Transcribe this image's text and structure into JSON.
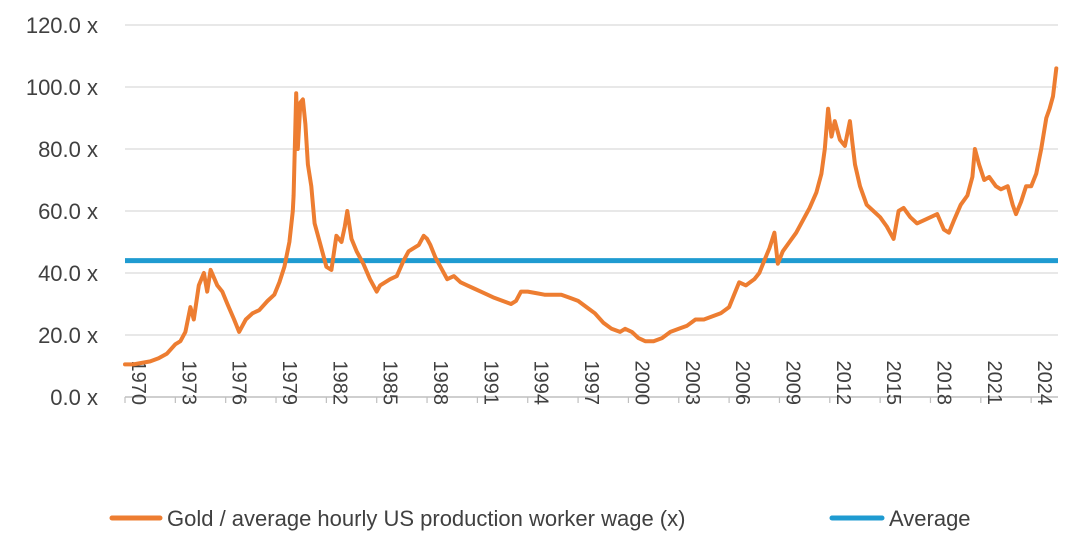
{
  "chart_data": {
    "type": "line",
    "title": "",
    "xlabel": "",
    "ylabel": "",
    "xlim": [
      1970,
      2025.6
    ],
    "ylim": [
      0,
      120
    ],
    "grid": true,
    "legend_position": "bottom",
    "y_ticks": [
      0,
      20,
      40,
      60,
      80,
      100,
      120
    ],
    "y_tick_labels": [
      "0.0 x",
      "20.0 x",
      "40.0 x",
      "60.0 x",
      "80.0 x",
      "100.0 x",
      "120.0 x"
    ],
    "x_tick_labels": [
      "1970",
      "1973",
      "1976",
      "1979",
      "1982",
      "1985",
      "1988",
      "1991",
      "1994",
      "1997",
      "2000",
      "2003",
      "2006",
      "2009",
      "2012",
      "2015",
      "2018",
      "2021",
      "2024"
    ],
    "colors": {
      "ratio": "#ED7D31",
      "average": "#1F9BD1",
      "grid": "#D9D9D9",
      "axis": "#BFBFBF"
    },
    "series": [
      {
        "name": "Gold / average hourly US production worker wage (x)",
        "color": "#ED7D31",
        "x": [
          1970.0,
          1970.5,
          1971.0,
          1971.5,
          1972.0,
          1972.5,
          1973.0,
          1973.3,
          1973.6,
          1973.9,
          1974.1,
          1974.4,
          1974.7,
          1974.9,
          1975.1,
          1975.5,
          1975.8,
          1976.1,
          1976.5,
          1976.8,
          1977.2,
          1977.6,
          1978.0,
          1978.5,
          1978.9,
          1979.2,
          1979.5,
          1979.8,
          1980.0,
          1980.05,
          1980.2,
          1980.3,
          1980.45,
          1980.6,
          1980.75,
          1980.9,
          1981.1,
          1981.3,
          1981.6,
          1982.0,
          1982.3,
          1982.6,
          1982.9,
          1983.1,
          1983.25,
          1983.5,
          1983.8,
          1984.2,
          1984.6,
          1985.0,
          1985.2,
          1985.5,
          1985.8,
          1986.2,
          1986.6,
          1986.9,
          1987.2,
          1987.5,
          1987.8,
          1988.0,
          1988.2,
          1988.5,
          1988.8,
          1989.2,
          1989.6,
          1990.0,
          1990.4,
          1990.8,
          1991.2,
          1991.6,
          1992.0,
          1992.5,
          1993.0,
          1993.3,
          1993.6,
          1994.0,
          1994.5,
          1995.0,
          1995.5,
          1996.0,
          1996.5,
          1997.0,
          1997.5,
          1998.0,
          1998.5,
          1999.0,
          1999.5,
          1999.8,
          2000.2,
          2000.6,
          2001.0,
          2001.5,
          2002.0,
          2002.5,
          2003.0,
          2003.5,
          2004.0,
          2004.5,
          2005.0,
          2005.5,
          2006.0,
          2006.3,
          2006.6,
          2007.0,
          2007.5,
          2007.8,
          2008.1,
          2008.4,
          2008.7,
          2008.9,
          2009.2,
          2009.6,
          2010.0,
          2010.4,
          2010.8,
          2011.2,
          2011.5,
          2011.7,
          2011.9,
          2012.1,
          2012.3,
          2012.6,
          2012.9,
          2013.2,
          2013.35,
          2013.5,
          2013.8,
          2014.2,
          2014.6,
          2015.0,
          2015.4,
          2015.8,
          2016.1,
          2016.4,
          2016.8,
          2017.2,
          2017.6,
          2018.0,
          2018.4,
          2018.8,
          2019.1,
          2019.4,
          2019.8,
          2020.2,
          2020.5,
          2020.65,
          2020.9,
          2021.2,
          2021.5,
          2021.9,
          2022.2,
          2022.6,
          2022.9,
          2023.1,
          2023.4,
          2023.7,
          2024.0,
          2024.3,
          2024.6,
          2024.9,
          2025.1,
          2025.3,
          2025.5
        ],
        "values": [
          10.5,
          10.5,
          11.0,
          11.5,
          12.5,
          14.0,
          17.0,
          18.0,
          21.0,
          29.0,
          25.0,
          36.0,
          40.0,
          34.0,
          41.0,
          36.0,
          34.0,
          30.0,
          25.0,
          21.0,
          25.0,
          27.0,
          28.0,
          31.0,
          33.0,
          37.0,
          42.0,
          50.0,
          60.0,
          65.0,
          98.0,
          80.0,
          95.0,
          96.0,
          88.0,
          75.0,
          68.0,
          56.0,
          50.0,
          42.0,
          41.0,
          52.0,
          50.0,
          55.0,
          60.0,
          51.0,
          47.0,
          43.0,
          38.0,
          34.0,
          36.0,
          37.0,
          38.0,
          39.0,
          44.0,
          47.0,
          48.0,
          49.0,
          52.0,
          51.0,
          49.0,
          45.0,
          42.0,
          38.0,
          39.0,
          37.0,
          36.0,
          35.0,
          34.0,
          33.0,
          32.0,
          31.0,
          30.0,
          31.0,
          34.0,
          34.0,
          33.5,
          33.0,
          33.0,
          33.0,
          32.0,
          31.0,
          29.0,
          27.0,
          24.0,
          22.0,
          21.0,
          22.0,
          21.0,
          19.0,
          18.0,
          18.0,
          19.0,
          21.0,
          22.0,
          23.0,
          25.0,
          25.0,
          26.0,
          27.0,
          29.0,
          33.0,
          37.0,
          36.0,
          38.0,
          40.0,
          44.0,
          48.0,
          53.0,
          43.0,
          47.0,
          50.0,
          53.0,
          57.0,
          61.0,
          66.0,
          72.0,
          80.0,
          93.0,
          84.0,
          89.0,
          83.0,
          81.0,
          89.0,
          82.0,
          75.0,
          68.0,
          62.0,
          60.0,
          58.0,
          55.0,
          51.0,
          60.0,
          61.0,
          58.0,
          56.0,
          57.0,
          58.0,
          59.0,
          54.0,
          53.0,
          57.0,
          62.0,
          65.0,
          71.0,
          80.0,
          75.0,
          70.0,
          71.0,
          68.0,
          67.0,
          68.0,
          62.0,
          59.0,
          63.0,
          68.0,
          68.0,
          72.0,
          80.0,
          90.0,
          93.0,
          97.0,
          106.0
        ]
      },
      {
        "name": "Average",
        "color": "#1F9BD1",
        "x": [
          1970.0,
          2025.6
        ],
        "values": [
          44.0,
          44.0
        ]
      }
    ]
  },
  "legend": {
    "items": [
      {
        "label": "Gold / average hourly US production worker wage (x)"
      },
      {
        "label": "Average"
      }
    ]
  }
}
